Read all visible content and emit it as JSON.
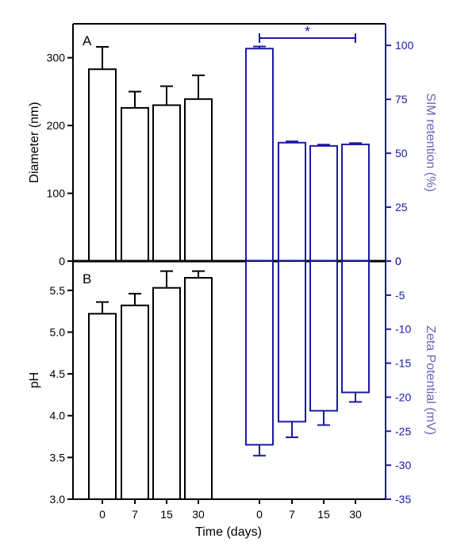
{
  "colors": {
    "black": "#000000",
    "blue": "#1a1aa6",
    "blue_label": "#6666bb"
  },
  "chart_data": [
    {
      "panel": "A",
      "type": "bar",
      "xlabel": "Time (days)",
      "left_axis": {
        "label": "Diameter (nm)",
        "ylim": [
          0,
          350
        ],
        "ticks": [
          0,
          100,
          200,
          300
        ],
        "tick_labels": [
          "0",
          "100",
          "200",
          "300"
        ],
        "series": {
          "x": [
            "0",
            "7",
            "15",
            "30"
          ],
          "values": [
            283,
            226,
            230,
            239
          ],
          "errors": [
            33,
            24,
            28,
            35
          ]
        }
      },
      "right_axis": {
        "label": "SIM retention (%)",
        "ylim": [
          0,
          110
        ],
        "ticks": [
          0,
          25,
          50,
          75,
          100
        ],
        "tick_labels": [
          "0",
          "25",
          "50",
          "75",
          "100"
        ],
        "series": {
          "x": [
            "0",
            "7",
            "15",
            "30"
          ],
          "values": [
            98.5,
            54.9,
            53.4,
            54.1
          ],
          "errors": [
            1.0,
            0.6,
            0.6,
            0.6
          ]
        }
      },
      "annotation": {
        "text": "*",
        "from": "0",
        "to": "30"
      }
    },
    {
      "panel": "B",
      "type": "bar",
      "xlabel": "Time (days)",
      "x_tick_labels": [
        "0",
        "7",
        "15",
        "30",
        "0",
        "7",
        "15",
        "30"
      ],
      "left_axis": {
        "label": "pH",
        "ylim": [
          3.0,
          5.85
        ],
        "ticks": [
          3.0,
          3.5,
          4.0,
          4.5,
          5.0,
          5.5
        ],
        "tick_labels": [
          "3.0",
          "3.5",
          "4.0",
          "4.5",
          "5.0",
          "5.5"
        ],
        "series": {
          "x": [
            "0",
            "7",
            "15",
            "30"
          ],
          "values": [
            5.22,
            5.32,
            5.53,
            5.65
          ],
          "errors": [
            0.14,
            0.14,
            0.2,
            0.08
          ]
        }
      },
      "right_axis": {
        "label": "Zeta Potential (mV)",
        "ylim": [
          -35,
          0
        ],
        "ticks": [
          0,
          -5,
          -10,
          -15,
          -20,
          -25,
          -30,
          -35
        ],
        "tick_labels": [
          "0",
          "-5",
          "-10",
          "-15",
          "-20",
          "-25",
          "-30",
          "-35"
        ],
        "series": {
          "x": [
            "0",
            "7",
            "15",
            "30"
          ],
          "values": [
            -27.0,
            -23.6,
            -22.0,
            -19.3
          ],
          "errors": [
            1.6,
            2.3,
            2.1,
            1.4
          ]
        }
      }
    }
  ]
}
